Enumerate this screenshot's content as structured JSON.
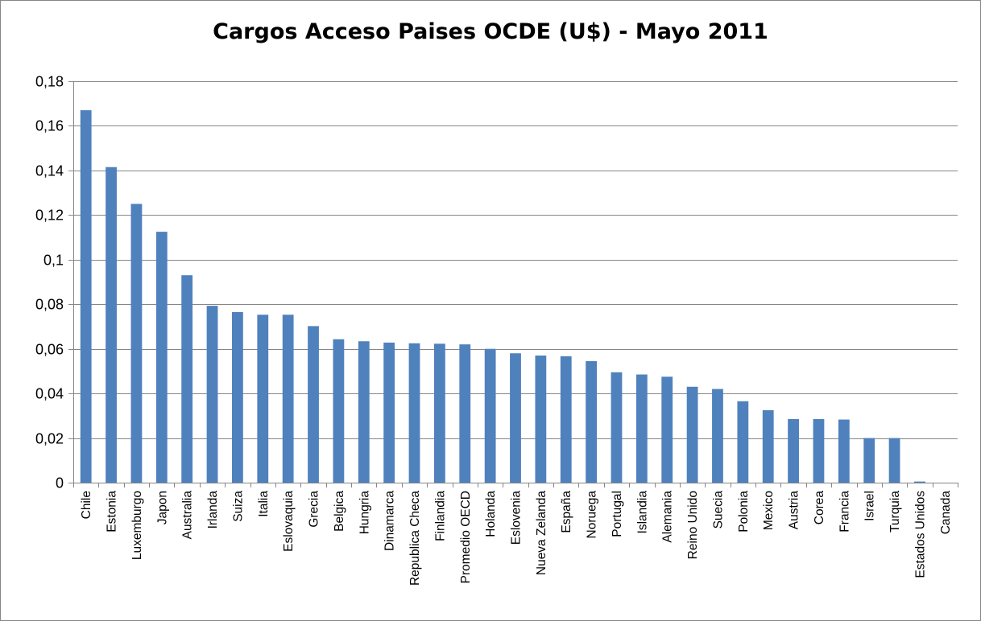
{
  "chart_data": {
    "type": "bar",
    "title": "Cargos Acceso Paises OCDE (U$) - Mayo 2011",
    "xlabel": "",
    "ylabel": "",
    "ylim": [
      0,
      0.18
    ],
    "yticks": [
      0,
      0.02,
      0.04,
      0.06,
      0.08,
      0.1,
      0.12,
      0.14,
      0.16,
      0.18
    ],
    "ytick_labels": [
      "0",
      "0,02",
      "0,04",
      "0,06",
      "0,08",
      "0,1",
      "0,12",
      "0,14",
      "0,16",
      "0,18"
    ],
    "grid": true,
    "legend": "none",
    "bar_color": "#4F81BD",
    "categories": [
      "Chile",
      "Estonia",
      "Luxemburgo",
      "Japon",
      "Australia",
      "Irlanda",
      "Suiza",
      "Italia",
      "Eslovaquia",
      "Grecia",
      "Belgica",
      "Hungria",
      "Dinamarca",
      "Republica Checa",
      "Finlandia",
      "Promedio OECD",
      "Holanda",
      "Eslovenia",
      "Nueva Zelanda",
      "España",
      "Noruega",
      "Portugal",
      "Islandia",
      "Alemania",
      "Reino Unido",
      "Suecia",
      "Polonia",
      "Mexico",
      "Austria",
      "Corea",
      "Francia",
      "Israel",
      "Turquia",
      "Estados Unidos",
      "Canada"
    ],
    "values": [
      0.167,
      0.1415,
      0.125,
      0.1125,
      0.093,
      0.0793,
      0.0765,
      0.0753,
      0.0753,
      0.0702,
      0.0643,
      0.0634,
      0.0628,
      0.0625,
      0.0623,
      0.062,
      0.06,
      0.058,
      0.057,
      0.0567,
      0.0545,
      0.0495,
      0.0485,
      0.0475,
      0.043,
      0.042,
      0.0365,
      0.0325,
      0.0285,
      0.0285,
      0.0283,
      0.02,
      0.02,
      0.0005,
      0
    ]
  }
}
